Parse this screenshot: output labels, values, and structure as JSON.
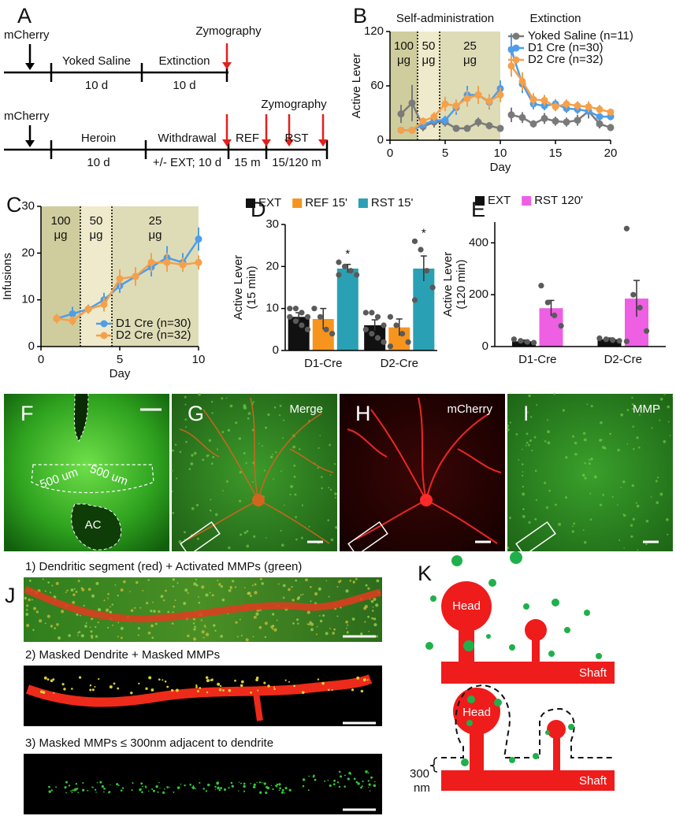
{
  "panel_labels": [
    "A",
    "B",
    "C",
    "D",
    "E",
    "F",
    "G",
    "H",
    "I",
    "J",
    "K"
  ],
  "protocol": {
    "rows": [
      {
        "injection": "mCherry",
        "assay": "Zymography",
        "stages": [
          {
            "name": "Yoked Saline",
            "duration": "10 d"
          },
          {
            "name": "Extinction",
            "duration": "10 d"
          }
        ]
      },
      {
        "injection": "mCherry",
        "assay": "Zymography",
        "stages": [
          {
            "name": "Heroin",
            "duration": "10 d"
          },
          {
            "name": "Withdrawal",
            "duration": "+/- EXT; 10 d"
          },
          {
            "name": "REF",
            "duration": "15 m"
          },
          {
            "name": "RST",
            "duration": "15/120 m"
          }
        ]
      }
    ]
  },
  "chart_data": [
    {
      "type": "line",
      "phases": [
        {
          "label": "Self-administration",
          "start": 0,
          "end": 10
        },
        {
          "label": "Extinction",
          "start": 10,
          "end": 20
        }
      ],
      "doses": [
        {
          "amount": "100",
          "unit": "μg",
          "start": 0,
          "end": 2.5,
          "color": "#cfcd9d"
        },
        {
          "amount": "50",
          "unit": "μg",
          "start": 2.5,
          "end": 4.5,
          "color": "#efeacb"
        },
        {
          "amount": "25",
          "unit": "μg",
          "start": 4.5,
          "end": 10,
          "color": "#dedcb6"
        }
      ],
      "x": [
        1,
        2,
        3,
        4,
        5,
        6,
        7,
        8,
        9,
        10,
        11,
        12,
        13,
        14,
        15,
        16,
        17,
        18,
        19,
        20
      ],
      "series": [
        {
          "name": "Yoked Saline (n=11)",
          "color": "#7a7a7a",
          "values": [
            29,
            41,
            15,
            20,
            20,
            13,
            13,
            20,
            16,
            13,
            28,
            25,
            18,
            24,
            21,
            20,
            22,
            32,
            18,
            14
          ],
          "errors": [
            10,
            20,
            5,
            6,
            5,
            3,
            3,
            5,
            4,
            3,
            8,
            6,
            4,
            6,
            5,
            5,
            6,
            8,
            5,
            4
          ]
        },
        {
          "name": "D1 Cre (n=30)",
          "color": "#4f9de8",
          "values": [
            11,
            11,
            17,
            22,
            22,
            36,
            50,
            50,
            42,
            57,
            100,
            62,
            40,
            38,
            40,
            35,
            34,
            32,
            26,
            26
          ],
          "errors": [
            2,
            2,
            3,
            4,
            5,
            8,
            10,
            9,
            8,
            9,
            18,
            10,
            6,
            5,
            5,
            5,
            5,
            4,
            4,
            4
          ]
        },
        {
          "name": "D2 Cre (n=32)",
          "color": "#f5a04a",
          "values": [
            11,
            11,
            21,
            26,
            40,
            38,
            46,
            50,
            43,
            50,
            82,
            65,
            45,
            44,
            37,
            40,
            38,
            37,
            34,
            31
          ],
          "errors": [
            2,
            2,
            4,
            5,
            8,
            7,
            9,
            10,
            8,
            8,
            12,
            10,
            7,
            6,
            5,
            5,
            5,
            6,
            5,
            4
          ]
        }
      ],
      "xlim": [
        0,
        20
      ],
      "ylim": [
        0,
        120
      ],
      "xticks": [
        0,
        5,
        10,
        15,
        20
      ],
      "yticks": [
        0,
        60,
        120
      ],
      "xlabel": "Day",
      "ylabel": "Active Lever",
      "legend": "upper right"
    },
    {
      "type": "line",
      "doses": [
        {
          "amount": "100",
          "unit": "μg",
          "start": 0,
          "end": 2.5,
          "color": "#cfcd9d"
        },
        {
          "amount": "50",
          "unit": "μg",
          "start": 2.5,
          "end": 4.5,
          "color": "#efeacb"
        },
        {
          "amount": "25",
          "unit": "μg",
          "start": 4.5,
          "end": 10,
          "color": "#dedcb6"
        }
      ],
      "x": [
        1,
        2,
        3,
        4,
        5,
        6,
        7,
        8,
        9,
        10
      ],
      "series": [
        {
          "name": "D1 Cre (n=30)",
          "color": "#4f9de8",
          "values": [
            6,
            7,
            8,
            10,
            13,
            15,
            17,
            19,
            18,
            23
          ],
          "errors": [
            1,
            1.5,
            1,
            1.5,
            1.5,
            1.5,
            2,
            2.5,
            2,
            2.5
          ]
        },
        {
          "name": "D2 Cre (n=32)",
          "color": "#f5a04a",
          "values": [
            6,
            5.5,
            8,
            9,
            14.5,
            15,
            18,
            18,
            17.5,
            18
          ],
          "errors": [
            1,
            1,
            1,
            1.5,
            2,
            2,
            2,
            2,
            1.5,
            1.5
          ]
        }
      ],
      "xlim": [
        0,
        10
      ],
      "ylim": [
        0,
        30
      ],
      "xticks": [
        0,
        5,
        10
      ],
      "yticks": [
        0,
        10,
        20,
        30
      ],
      "xlabel": "Day",
      "ylabel": "Infusions",
      "legend": "lower right"
    },
    {
      "type": "bar",
      "categories": [
        "D1-Cre",
        "D2-Cre"
      ],
      "series": [
        {
          "name": "EXT",
          "color": "#111111",
          "values": [
            8,
            6
          ],
          "errors": [
            1,
            1.3
          ],
          "points": [
            [
              10,
              10,
              9,
              8,
              8,
              7,
              6,
              5
            ],
            [
              9,
              9,
              8,
              6,
              5,
              4,
              3,
              2
            ]
          ]
        },
        {
          "name": "REF 15'",
          "color": "#f7941d",
          "values": [
            7.5,
            5.5
          ],
          "errors": [
            2.5,
            2
          ],
          "points": [
            [
              10,
              8,
              5,
              4
            ],
            [
              8,
              6,
              4,
              2,
              1
            ]
          ]
        },
        {
          "name": "RST 15'",
          "color": "#2aa0b4",
          "values": [
            19.5,
            19.5
          ],
          "errors": [
            1,
            3
          ],
          "points": [
            [
              21,
              20,
              19,
              18,
              18
            ],
            [
              26,
              24,
              19,
              15,
              12
            ]
          ],
          "significance": [
            "*",
            "*"
          ]
        }
      ],
      "ylim": [
        0,
        30
      ],
      "yticks": [
        0,
        10,
        20,
        30
      ],
      "ylabel": [
        "Active Lever",
        "(15 min)"
      ]
    },
    {
      "type": "bar",
      "categories": [
        "D1-Cre",
        "D2-Cre"
      ],
      "series": [
        {
          "name": "EXT",
          "color": "#111111",
          "values": [
            20,
            28
          ],
          "errors": [
            5,
            5
          ],
          "points": [
            [
              28,
              22,
              18,
              15
            ],
            [
              32,
              28,
              25,
              22
            ]
          ]
        },
        {
          "name": "RST 120'",
          "color": "#ee5fe4",
          "values": [
            148,
            185
          ],
          "errors": [
            30,
            70
          ],
          "points": [
            [
              235,
              170,
              120,
              80
            ],
            [
              455,
              200,
              150,
              60,
              20
            ]
          ]
        }
      ],
      "ylim": [
        0,
        480
      ],
      "yticks": [
        0,
        200,
        400
      ],
      "ylabel": [
        "Active Lever",
        "(120 min)"
      ]
    }
  ],
  "images": {
    "f": {
      "region": "500 um",
      "area": "AC"
    },
    "g": "Merge",
    "h": "mCherry",
    "i": "MMP",
    "j": [
      "1) Dendritic segment (red) + Activated MMPs (green)",
      "2) Masked Dendrite + Masked MMPs",
      "3) Masked MMPs ≤ 300nm adjacent to dendrite"
    ]
  },
  "diagram": {
    "upper": {
      "head": "Head",
      "shaft": "Shaft"
    },
    "lower": {
      "head": "Head",
      "shaft": "Shaft",
      "distance": "300",
      "unit": "nm"
    }
  }
}
